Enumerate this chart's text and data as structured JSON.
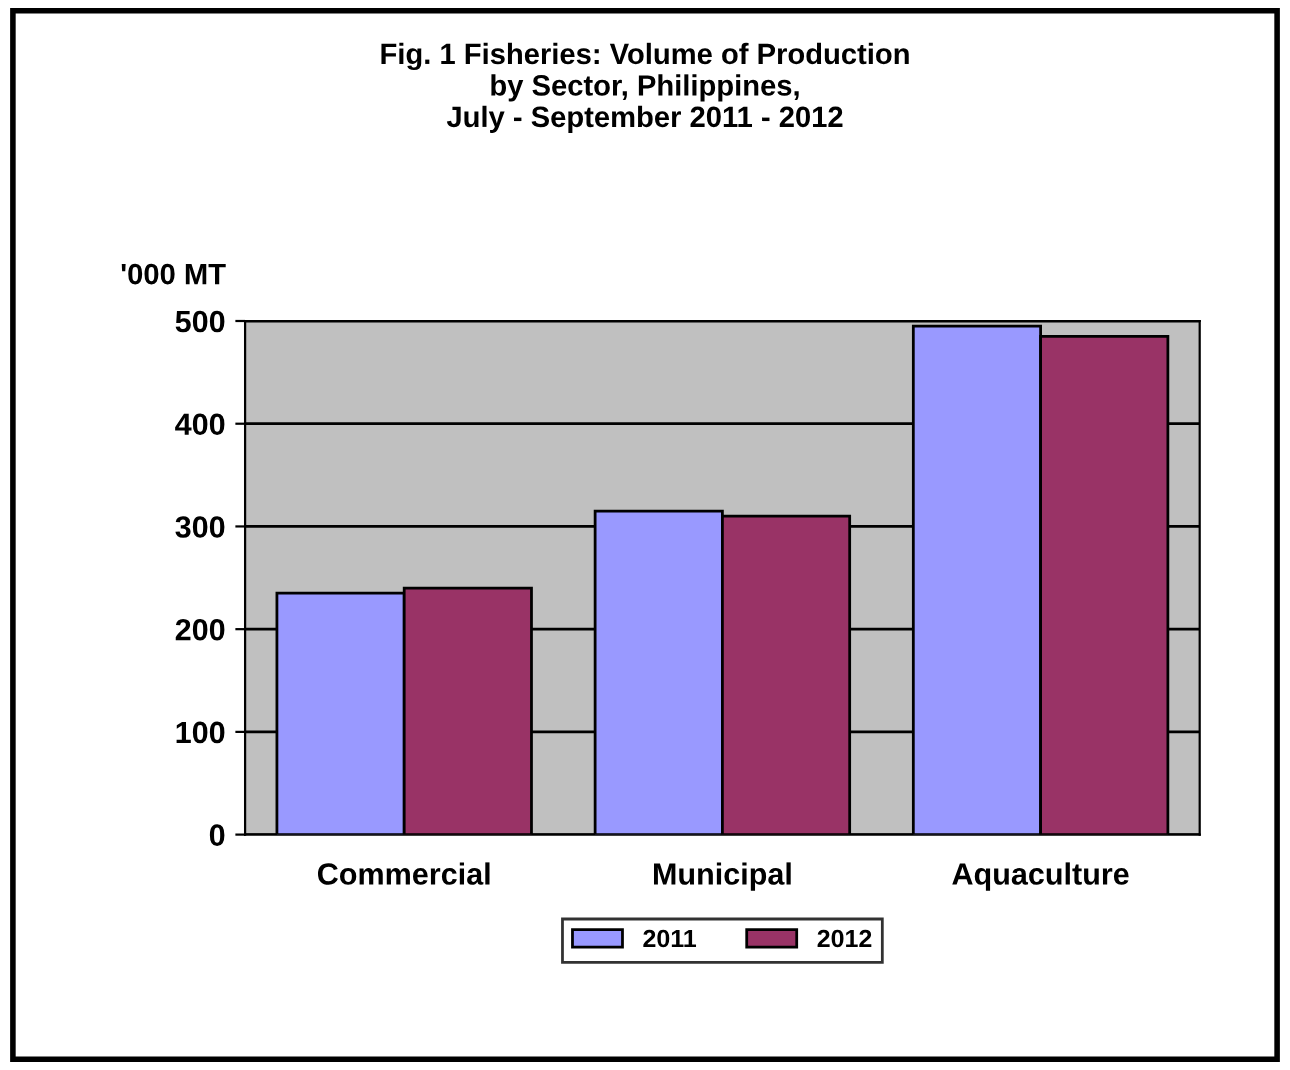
{
  "chart_data": {
    "type": "bar",
    "title": "Fig. 1 Fisheries: Volume of Production\nby Sector, Philippines,\nJuly - September 2011 - 2012",
    "ylabel": "'000 MT",
    "categories": [
      "Commercial",
      "Municipal",
      "Aquaculture"
    ],
    "series": [
      {
        "name": "2011",
        "color": "#9999ff",
        "values": [
          235,
          315,
          495
        ]
      },
      {
        "name": "2012",
        "color": "#993366",
        "values": [
          240,
          310,
          485
        ]
      }
    ],
    "ylim": [
      0,
      500
    ],
    "yticks": [
      0,
      100,
      200,
      300,
      400,
      500
    ],
    "grid": "y",
    "legend": "bottom"
  }
}
